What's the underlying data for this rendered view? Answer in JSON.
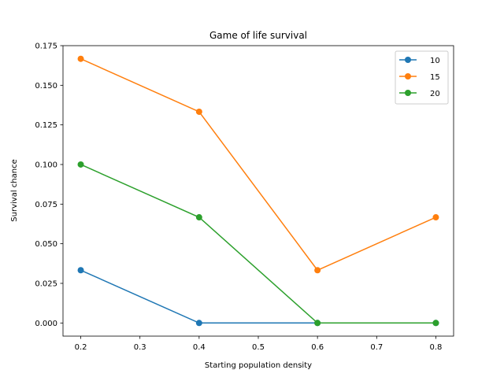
{
  "chart_data": {
    "type": "line",
    "title": "Game of life survival",
    "xlabel": "Starting population density",
    "ylabel": "Survival chance",
    "x": [
      0.2,
      0.4,
      0.6,
      0.8
    ],
    "xlim": [
      0.17,
      0.83
    ],
    "ylim": [
      -0.0083,
      0.175
    ],
    "xticks": [
      0.2,
      0.3,
      0.4,
      0.5,
      0.6,
      0.7,
      0.8
    ],
    "xtick_labels": [
      "0.2",
      "0.3",
      "0.4",
      "0.5",
      "0.6",
      "0.7",
      "0.8"
    ],
    "yticks": [
      0,
      0.025,
      0.05,
      0.075,
      0.1,
      0.125,
      0.15,
      0.175
    ],
    "ytick_labels": [
      "0.000",
      "0.025",
      "0.050",
      "0.075",
      "0.100",
      "0.125",
      "0.150",
      "0.175"
    ],
    "grid": false,
    "legend_position": "top-right",
    "series": [
      {
        "name": "10",
        "color": "#1f77b4",
        "values": [
          0.0333,
          0.0,
          0.0,
          0.0
        ]
      },
      {
        "name": "15",
        "color": "#ff7f0e",
        "values": [
          0.1667,
          0.1333,
          0.0333,
          0.0667
        ]
      },
      {
        "name": "20",
        "color": "#2ca02c",
        "values": [
          0.1,
          0.0667,
          0.0,
          0.0
        ]
      }
    ]
  }
}
